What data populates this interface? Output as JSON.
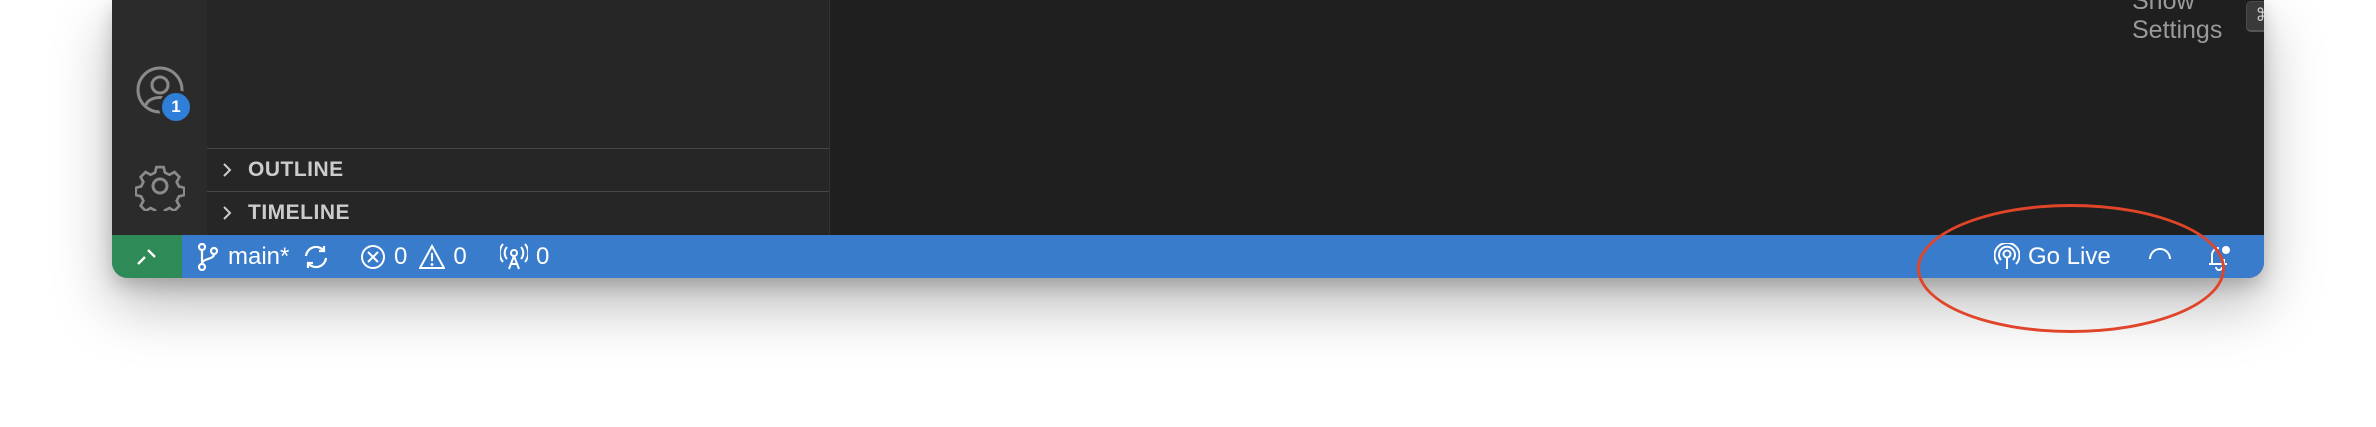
{
  "editor": {
    "show_settings_label": "Show Settings",
    "shortcut_keys": [
      "⌘",
      ","
    ]
  },
  "activity_bar": {
    "accounts_badge": "1",
    "icons": [
      "accounts-icon",
      "gear-icon"
    ]
  },
  "sidebar": {
    "sections": [
      {
        "label": "OUTLINE"
      },
      {
        "label": "TIMELINE"
      }
    ]
  },
  "status_bar": {
    "branch": "main*",
    "errors": "0",
    "warnings": "0",
    "ports": "0",
    "go_live_label": "Go Live",
    "colors": {
      "background": "#3a7ccc",
      "remote_indicator": "#2e8b57"
    }
  },
  "annotation": {
    "color": "#e0452a"
  }
}
